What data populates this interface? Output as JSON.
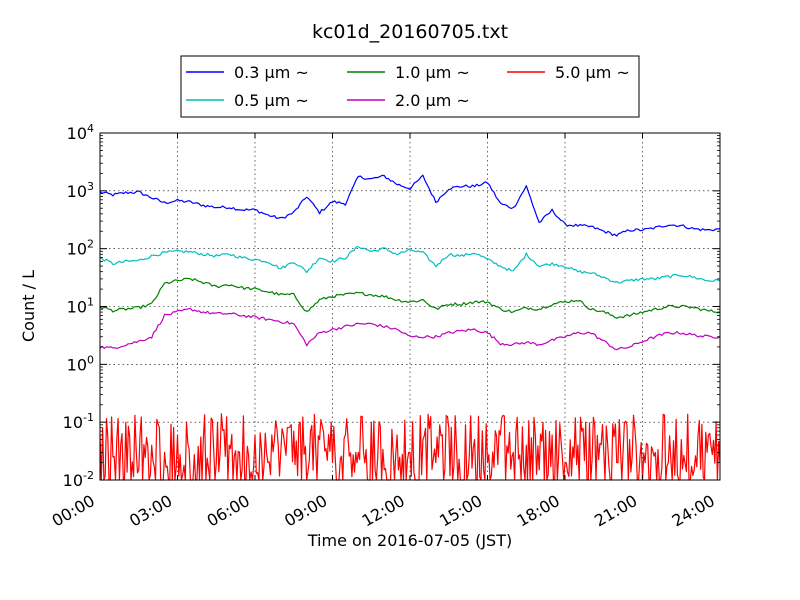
{
  "chart_data": {
    "type": "line",
    "title": "kc01d_20160705.txt",
    "xlabel": "Time on 2016-07-05 (JST)",
    "ylabel": "Count / L",
    "xlim": [
      0,
      24
    ],
    "ylim": [
      0.01,
      10000
    ],
    "yscale": "log",
    "grid": true,
    "legend_position": "top",
    "x_ticks": [
      "00:00",
      "03:00",
      "06:00",
      "09:00",
      "12:00",
      "15:00",
      "18:00",
      "21:00",
      "24:00"
    ],
    "y_ticks": [
      {
        "value": 0.01,
        "base": "10",
        "exp": "-2"
      },
      {
        "value": 0.1,
        "base": "10",
        "exp": "-1"
      },
      {
        "value": 1,
        "base": "10",
        "exp": "0"
      },
      {
        "value": 10,
        "base": "10",
        "exp": "1"
      },
      {
        "value": 100,
        "base": "10",
        "exp": "2"
      },
      {
        "value": 1000,
        "base": "10",
        "exp": "3"
      },
      {
        "value": 10000,
        "base": "10",
        "exp": "4"
      }
    ],
    "x_hours": [
      0,
      0.5,
      1,
      1.5,
      2,
      2.5,
      3,
      3.5,
      4,
      4.5,
      5,
      5.5,
      6,
      6.5,
      7,
      7.5,
      8,
      8.5,
      9,
      9.5,
      10,
      10.5,
      11,
      11.5,
      12,
      12.5,
      13,
      13.5,
      14,
      14.5,
      15,
      15.5,
      16,
      16.5,
      17,
      17.5,
      18,
      18.5,
      19,
      19.5,
      20,
      20.5,
      21,
      21.5,
      22,
      22.5,
      23,
      23.5,
      24
    ],
    "series": [
      {
        "name": "0.3 μm ~",
        "color": "#0000ff",
        "values": [
          950,
          850,
          930,
          950,
          760,
          620,
          680,
          640,
          560,
          520,
          520,
          470,
          470,
          380,
          330,
          420,
          800,
          420,
          650,
          600,
          1750,
          1600,
          1800,
          1300,
          1100,
          1800,
          640,
          1100,
          1200,
          1200,
          1400,
          600,
          500,
          1200,
          280,
          460,
          260,
          250,
          240,
          200,
          170,
          210,
          210,
          230,
          260,
          250,
          220,
          210,
          220
        ]
      },
      {
        "name": "0.5 μm ~",
        "color": "#00bfbf",
        "values": [
          70,
          55,
          60,
          62,
          75,
          85,
          90,
          88,
          80,
          75,
          80,
          70,
          65,
          60,
          45,
          60,
          40,
          70,
          60,
          70,
          110,
          90,
          100,
          80,
          95,
          85,
          50,
          80,
          75,
          85,
          65,
          50,
          40,
          80,
          50,
          55,
          50,
          40,
          38,
          32,
          26,
          28,
          30,
          30,
          33,
          35,
          32,
          28,
          28
        ]
      },
      {
        "name": "1.0 μm ~",
        "color": "#008000",
        "values": [
          10,
          8.5,
          9,
          9.5,
          11,
          25,
          28,
          30,
          26,
          22,
          24,
          21,
          20,
          18,
          16,
          16,
          8,
          13,
          15,
          16,
          17,
          16,
          15,
          13,
          12,
          13,
          9,
          11,
          11,
          12,
          12,
          9,
          8,
          9.5,
          9,
          11,
          12,
          13,
          9,
          8,
          6.5,
          7,
          8,
          9,
          10,
          10,
          9.5,
          8.5,
          8
        ]
      },
      {
        "name": "2.0 μm ~",
        "color": "#bf00bf",
        "values": [
          2,
          1.9,
          2.2,
          2.5,
          3,
          7,
          8,
          9,
          8,
          7.5,
          7.5,
          7,
          6.5,
          6,
          5.5,
          5,
          2.2,
          3.5,
          4,
          4.5,
          5,
          5,
          4.5,
          4,
          3,
          3,
          3,
          3.5,
          3.8,
          4,
          3.5,
          2.3,
          2.2,
          2.4,
          2.2,
          2.6,
          3,
          3.5,
          3.5,
          2.5,
          1.8,
          2,
          2.5,
          3,
          3.5,
          3.5,
          3.2,
          3,
          3
        ]
      },
      {
        "name": "5.0 μm ~",
        "color": "#ff0000",
        "values": [
          0.06,
          0.025,
          0.1,
          0.015,
          0.04,
          0.03,
          0.06,
          0.01,
          0.05,
          0.02,
          0.04,
          0.015,
          0.06,
          0.02,
          0.03,
          0.07,
          0.01,
          0.05,
          0.02,
          0.06,
          0.03,
          0.1,
          0.015,
          0.06,
          0.03,
          0.05,
          0.02,
          0.08,
          0.01,
          0.05,
          0.02,
          0.06,
          0.03,
          0.04,
          0.015,
          0.06,
          0.02,
          0.04,
          0.01,
          0.03,
          0.02,
          0.05,
          0.01,
          0.03,
          0.02,
          0.05,
          0.015,
          0.03,
          0.02
        ]
      }
    ]
  }
}
